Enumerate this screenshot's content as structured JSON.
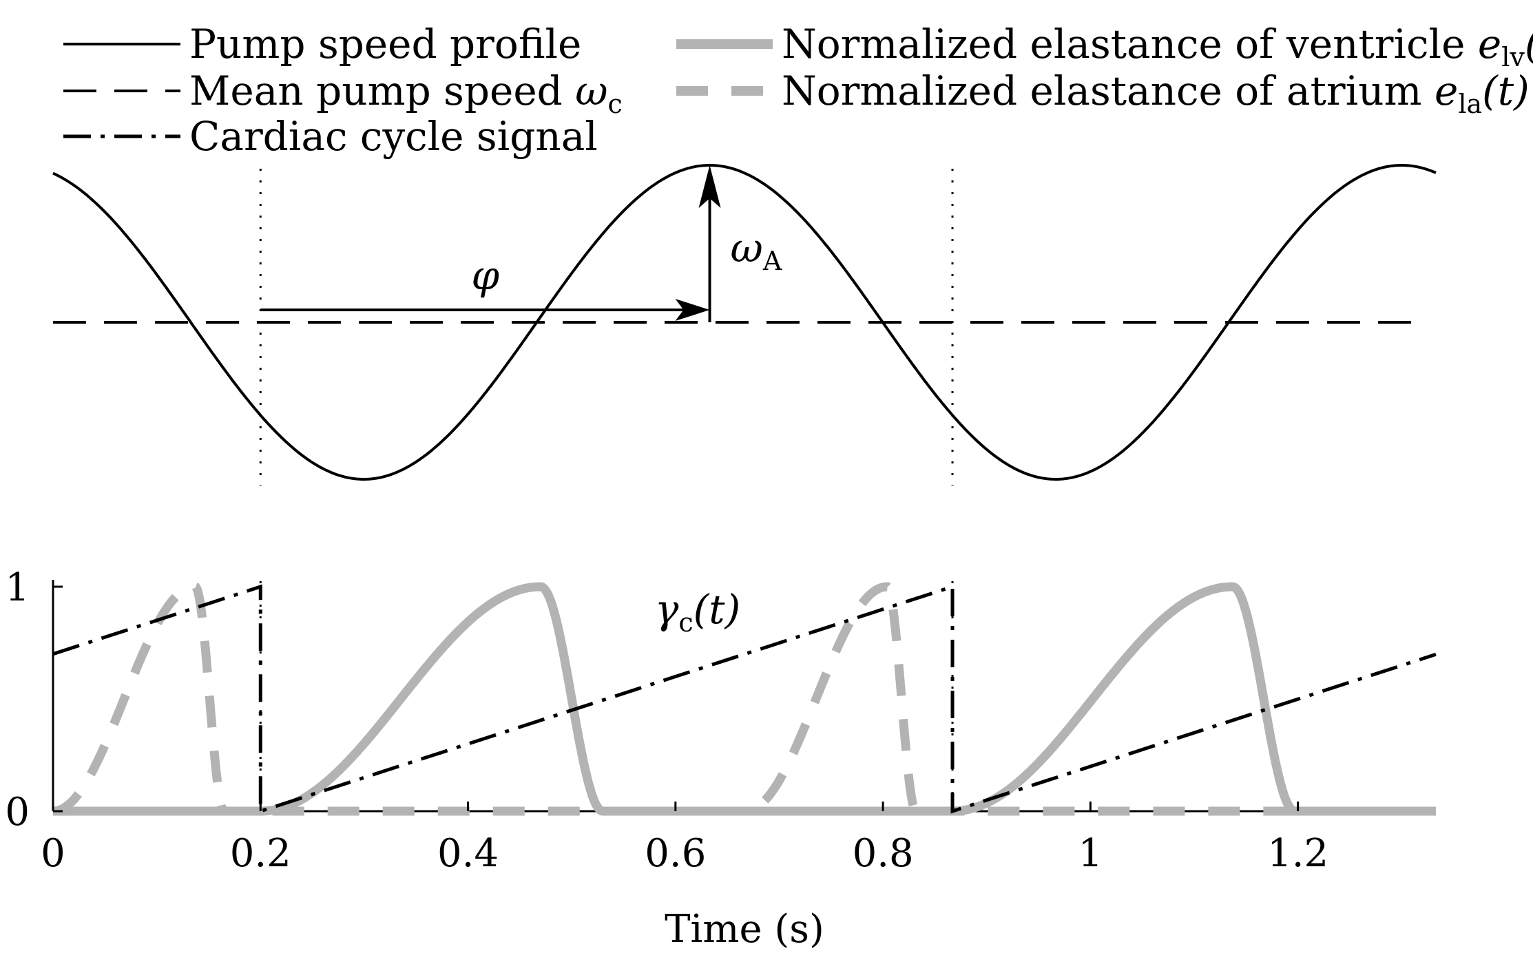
{
  "chart_data": [
    {
      "type": "line",
      "panel": "top",
      "series": [
        {
          "name": "Pump speed profile",
          "style": "solid-black",
          "kind": "cosine",
          "period": 0.667,
          "phase_peak_time": 0.633,
          "mean": 0,
          "amplitude": 1
        },
        {
          "name": "Mean pump speed",
          "style": "dashed-black",
          "value": 0
        }
      ],
      "vlines": [
        0.2,
        0.867
      ],
      "xlim": [
        0,
        1.333
      ],
      "ylim": [
        -1.1,
        1.1
      ],
      "annotations": [
        {
          "text": "φ",
          "from_x": 0.2,
          "to_x": 0.633,
          "type": "horizontal-arrow"
        },
        {
          "text": "ωA",
          "symbol": "ω",
          "subscript": "A",
          "at_x": 0.633,
          "type": "vertical-arrow"
        }
      ]
    },
    {
      "type": "line",
      "panel": "bottom",
      "series": [
        {
          "name": "Cardiac cycle signal",
          "label": "γc(t)",
          "style": "dashdot-black",
          "kind": "sawtooth",
          "period": 0.667,
          "reset_times": [
            0.2,
            0.867
          ]
        },
        {
          "name": "Normalized elastance of ventricle",
          "style": "thick-gray-solid",
          "kind": "pulse",
          "onset": [
            0.2,
            0.867
          ],
          "peak_time": [
            0.47,
            1.137
          ],
          "end_time": [
            0.53,
            1.197
          ]
        },
        {
          "name": "Normalized elastance of atrium",
          "style": "thick-gray-dashed",
          "kind": "pulse",
          "onset": [
            0.0,
            0.667
          ],
          "peak_time": [
            0.137,
            0.804
          ],
          "end_time": [
            0.165,
            0.832
          ]
        }
      ],
      "vlines": [
        0.2,
        0.867
      ],
      "xlim": [
        0,
        1.333
      ],
      "ylim": [
        0,
        1
      ],
      "xlabel": "Time (s)",
      "xticks": [
        0,
        0.2,
        0.4,
        0.6,
        0.8,
        1,
        1.2
      ],
      "xtick_labels": [
        "0",
        "0.2",
        "0.4",
        "0.6",
        "0.8",
        "1",
        "1.2"
      ],
      "yticks": [
        0,
        1
      ],
      "ytick_labels": [
        "0",
        "1"
      ]
    }
  ],
  "legend": {
    "left": [
      {
        "label": "Pump speed profile",
        "style": "solid-black"
      },
      {
        "label": "Mean pump speed ",
        "math": "ω",
        "sub": "c",
        "style": "dashed-black"
      },
      {
        "label": "Cardiac cycle signal",
        "style": "dashdot-black"
      }
    ],
    "right": [
      {
        "label": "Normalized elastance of ventricle ",
        "math": "e",
        "sub": "lv",
        "tail": "(t)",
        "style": "thick-gray-solid"
      },
      {
        "label": "Normalized elastance of atrium ",
        "math": "e",
        "sub": "la",
        "tail": "(t)",
        "style": "thick-gray-dashed"
      }
    ]
  },
  "annotation_text": {
    "phi": "φ",
    "omega": "ω",
    "omega_sub": "A",
    "gamma": "γ",
    "gamma_sub": "c",
    "gamma_tail": "(t)"
  },
  "colors": {
    "black": "#000000",
    "gray": "#b3b3b3"
  }
}
